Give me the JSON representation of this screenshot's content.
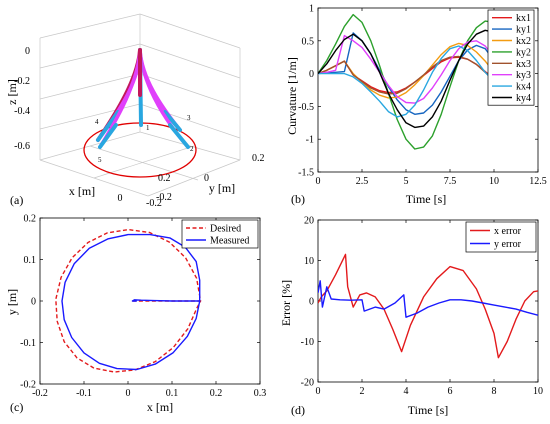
{
  "chart_data": [
    {
      "panel": "(a)",
      "type": "other",
      "description_kind": "3d-line",
      "xlabel": "x [m]",
      "ylabel": "y [m]",
      "zlabel": "z [m]",
      "x_ticks": [
        "0.2",
        "0",
        "-0.2"
      ],
      "y_ticks": [
        "-0.2",
        "0",
        "0.2"
      ],
      "z_ticks": [
        "0",
        "-0.2",
        "-0.4",
        "-0.6"
      ],
      "point_labels": [
        "1",
        "2",
        "3",
        "4",
        "5"
      ],
      "circle": {
        "center": [
          0,
          0,
          -0.6
        ],
        "radius": 0.15
      },
      "tip_points": [
        {
          "label": "1",
          "xy": [
            0,
            0
          ]
        },
        {
          "label": "2",
          "xy": [
            0.15,
            0
          ]
        },
        {
          "label": "3",
          "xy": [
            0,
            0.15
          ]
        },
        {
          "label": "4",
          "xy": [
            -0.15,
            0
          ]
        },
        {
          "label": "5",
          "xy": [
            0,
            -0.15
          ]
        }
      ],
      "colors": {
        "base": "#c2185b",
        "segment_mid": "#e040fb",
        "segment_tip": "#29a7e0",
        "circle": "#e00000"
      }
    },
    {
      "panel": "(b)",
      "type": "line",
      "xlabel": "Time [s]",
      "ylabel": "Curvature [1/m]",
      "xlim": [
        0,
        12.5
      ],
      "ylim": [
        -1.5,
        1
      ],
      "x_ticks": [
        "0",
        "2.5",
        "5",
        "7.5",
        "10",
        "12.5"
      ],
      "y_ticks": [
        "-1.5",
        "-1",
        "-0.5",
        "0",
        "0.5",
        "1"
      ],
      "legend_position": "top-right",
      "series": [
        {
          "name": "kx1",
          "color": "#e31a1c",
          "x": [
            0,
            0.5,
            1,
            1.5,
            2,
            2.5,
            3,
            3.5,
            4,
            4.5,
            5,
            5.5,
            6,
            6.5,
            7,
            7.5,
            8,
            8.5,
            9,
            9.5,
            10
          ],
          "y": [
            0,
            0.05,
            0.12,
            0.19,
            -0.02,
            -0.11,
            -0.2,
            -0.26,
            -0.29,
            -0.28,
            -0.22,
            -0.13,
            -0.03,
            0.08,
            0.18,
            0.24,
            0.25,
            0.22,
            0.14,
            0.03,
            -0.08
          ]
        },
        {
          "name": "ky1",
          "color": "#1565c0",
          "x": [
            0,
            0.5,
            1,
            1.5,
            2,
            2.5,
            3,
            3.5,
            4,
            4.5,
            5,
            5.5,
            6,
            6.5,
            7,
            7.5,
            8,
            8.5,
            9,
            9.5,
            10
          ],
          "y": [
            0,
            0.01,
            0.02,
            0.03,
            0.62,
            0.5,
            0.3,
            0.05,
            -0.2,
            -0.4,
            -0.55,
            -0.62,
            -0.6,
            -0.48,
            -0.28,
            -0.04,
            0.2,
            0.36,
            0.43,
            0.38,
            0.2
          ]
        },
        {
          "name": "kx2",
          "color": "#f39c12",
          "x": [
            0,
            0.5,
            1,
            1.5,
            2,
            2.5,
            3,
            3.5,
            4,
            4.5,
            5,
            5.5,
            6,
            6.5,
            7,
            7.5,
            8,
            8.5,
            9,
            9.5,
            10
          ],
          "y": [
            0,
            0.05,
            0.12,
            0.19,
            0,
            -0.13,
            -0.25,
            -0.33,
            -0.37,
            -0.36,
            -0.29,
            -0.17,
            -0.03,
            0.13,
            0.29,
            0.41,
            0.46,
            0.43,
            0.33,
            0.19,
            0.02
          ]
        },
        {
          "name": "ky2",
          "color": "#2ca02c",
          "x": [
            0,
            0.5,
            1,
            1.5,
            2,
            2.5,
            3,
            3.5,
            4,
            4.5,
            5,
            5.5,
            6,
            6.5,
            7,
            7.5,
            8,
            8.5,
            9,
            9.5,
            10
          ],
          "y": [
            0,
            0.2,
            0.45,
            0.72,
            0.9,
            0.78,
            0.5,
            0.12,
            -0.3,
            -0.7,
            -1.0,
            -1.15,
            -1.12,
            -0.95,
            -0.62,
            -0.2,
            0.2,
            0.5,
            0.7,
            0.8,
            0.78
          ]
        },
        {
          "name": "kx3",
          "color": "#a0522d",
          "x": [
            0,
            0.5,
            1,
            1.5,
            2,
            2.5,
            3,
            3.5,
            4,
            4.5,
            5,
            5.5,
            6,
            6.5,
            7,
            7.5,
            8,
            8.5,
            9,
            9.5,
            10
          ],
          "y": [
            0,
            0.05,
            0.12,
            0.19,
            -0.02,
            -0.12,
            -0.22,
            -0.28,
            -0.31,
            -0.3,
            -0.23,
            -0.13,
            -0.02,
            0.1,
            0.2,
            0.25,
            0.26,
            0.22,
            0.14,
            0.02,
            -0.1
          ]
        },
        {
          "name": "ky3",
          "color": "#e040fb",
          "x": [
            0,
            0.5,
            1,
            1.5,
            2,
            2.5,
            3,
            3.5,
            4,
            4.5,
            5,
            5.5,
            6,
            6.5,
            7,
            7.5,
            8,
            8.5,
            9,
            9.5,
            10
          ],
          "y": [
            0,
            0.02,
            0.05,
            0.58,
            0.5,
            0.4,
            0.22,
            0.02,
            -0.18,
            -0.35,
            -0.44,
            -0.45,
            -0.38,
            -0.22,
            -0.02,
            0.2,
            0.38,
            0.48,
            0.5,
            0.42,
            0.25
          ]
        },
        {
          "name": "kx4",
          "color": "#29a7e0",
          "x": [
            0,
            0.5,
            1,
            1.5,
            2,
            2.5,
            3,
            3.5,
            4,
            4.5,
            5,
            5.5,
            6,
            6.5,
            7,
            7.5,
            8,
            8.5,
            9,
            9.5,
            10
          ],
          "y": [
            0,
            0,
            0,
            0,
            -0.05,
            -0.15,
            -0.28,
            -0.42,
            -0.58,
            -0.66,
            -0.62,
            -0.48,
            -0.25,
            0.02,
            0.23,
            0.38,
            0.42,
            0.35,
            0.2,
            0.02,
            -0.12
          ]
        },
        {
          "name": "ky4",
          "color": "#000000",
          "x": [
            0,
            0.5,
            1,
            1.5,
            2,
            2.5,
            3,
            3.5,
            4,
            4.5,
            5,
            5.5,
            6,
            6.5,
            7,
            7.5,
            8,
            8.5,
            9,
            9.5,
            10
          ],
          "y": [
            0,
            0.15,
            0.35,
            0.52,
            0.6,
            0.5,
            0.3,
            0.02,
            -0.3,
            -0.55,
            -0.75,
            -0.82,
            -0.8,
            -0.66,
            -0.42,
            -0.1,
            0.2,
            0.45,
            0.6,
            0.66,
            0.63
          ]
        }
      ]
    },
    {
      "panel": "(c)",
      "type": "line",
      "xlabel": "x [m]",
      "ylabel": "y [m]",
      "xlim": [
        -0.2,
        0.3
      ],
      "ylim": [
        -0.2,
        0.2
      ],
      "x_ticks": [
        "-0.2",
        "-0.1",
        "0",
        "0.1",
        "0.2",
        "0.3"
      ],
      "y_ticks": [
        "-0.2",
        "-0.1",
        "0",
        "0.1",
        "0.2"
      ],
      "legend_position": "top-right",
      "series": [
        {
          "name": "Desired",
          "color": "#e31a1c",
          "dash": "dashed",
          "x": [
            0.01,
            0.165,
            0.165,
            0.156,
            0.131,
            0.094,
            0.049,
            0.001,
            -0.047,
            -0.091,
            -0.127,
            -0.152,
            -0.164,
            -0.161,
            -0.145,
            -0.116,
            -0.077,
            -0.031,
            0.016,
            0.062,
            0.103,
            0.136,
            0.157,
            0.165
          ],
          "y": [
            0.0,
            0.0,
            0.0,
            0.055,
            0.104,
            0.142,
            0.165,
            0.172,
            0.164,
            0.141,
            0.104,
            0.057,
            0.004,
            -0.049,
            -0.098,
            -0.137,
            -0.162,
            -0.171,
            -0.166,
            -0.146,
            -0.112,
            -0.067,
            -0.016,
            0.0
          ]
        },
        {
          "name": "Measured",
          "color": "#1a1aff",
          "dash": "solid",
          "x": [
            0.02,
            0.01,
            0.015,
            0.03,
            0.06,
            0.1,
            0.14,
            0.163,
            0.163,
            0.155,
            0.13,
            0.095,
            0.05,
            0.0,
            -0.045,
            -0.088,
            -0.122,
            -0.143,
            -0.15,
            -0.145,
            -0.128,
            -0.1,
            -0.065,
            -0.025,
            0.02,
            0.062,
            0.102,
            0.135,
            0.155,
            0.162,
            0.163
          ],
          "y": [
            0.0,
            0.0,
            0.003,
            0.002,
            0.001,
            0.0,
            0.0,
            0.0,
            0.05,
            0.095,
            0.13,
            0.152,
            0.16,
            0.16,
            0.15,
            0.127,
            0.09,
            0.045,
            0.0,
            -0.045,
            -0.088,
            -0.125,
            -0.15,
            -0.163,
            -0.165,
            -0.152,
            -0.125,
            -0.085,
            -0.042,
            -0.005,
            0.0
          ]
        }
      ]
    },
    {
      "panel": "(d)",
      "type": "line",
      "xlabel": "Time [s]",
      "ylabel": "Error [%]",
      "xlim": [
        0,
        10
      ],
      "ylim": [
        -20,
        20
      ],
      "x_ticks": [
        "0",
        "2",
        "4",
        "6",
        "8",
        "10"
      ],
      "y_ticks": [
        "-20",
        "-10",
        "0",
        "10",
        "20"
      ],
      "legend_position": "top-right",
      "series": [
        {
          "name": "x error",
          "color": "#e31a1c",
          "x": [
            0,
            0.15,
            0.4,
            0.8,
            1.25,
            1.35,
            1.6,
            1.9,
            2.2,
            2.6,
            3.0,
            3.4,
            3.8,
            4.2,
            4.8,
            5.4,
            6.0,
            6.6,
            7.2,
            7.6,
            8.0,
            8.2,
            8.6,
            9.0,
            9.4,
            9.8,
            10
          ],
          "y": [
            -0.5,
            1.0,
            2.5,
            6.5,
            11.5,
            3.5,
            -1.5,
            1.5,
            2.0,
            1.0,
            -2.0,
            -7.0,
            -12.5,
            -6.0,
            1.0,
            5.5,
            8.5,
            7.5,
            3.0,
            -2.0,
            -8.0,
            -14.0,
            -10.0,
            -4.5,
            0.0,
            2.3,
            2.5
          ]
        },
        {
          "name": "y error",
          "color": "#1a1aff",
          "x": [
            0,
            0.1,
            0.2,
            0.4,
            0.6,
            1.0,
            1.5,
            2.0,
            2.1,
            2.6,
            3.0,
            3.5,
            3.9,
            4.0,
            4.5,
            5.0,
            5.5,
            6.0,
            6.5,
            7.0,
            7.5,
            8.0,
            8.5,
            9.0,
            9.5,
            10
          ],
          "y": [
            2.0,
            5.0,
            -1.5,
            3.5,
            0.5,
            0.3,
            0.2,
            0.3,
            -2.5,
            -1.5,
            -2.0,
            -0.5,
            1.5,
            -4.0,
            -3.0,
            -1.5,
            -0.5,
            0.3,
            0.3,
            0.0,
            -0.5,
            -1.0,
            -1.5,
            -2.0,
            -2.8,
            -3.5
          ]
        }
      ]
    }
  ]
}
